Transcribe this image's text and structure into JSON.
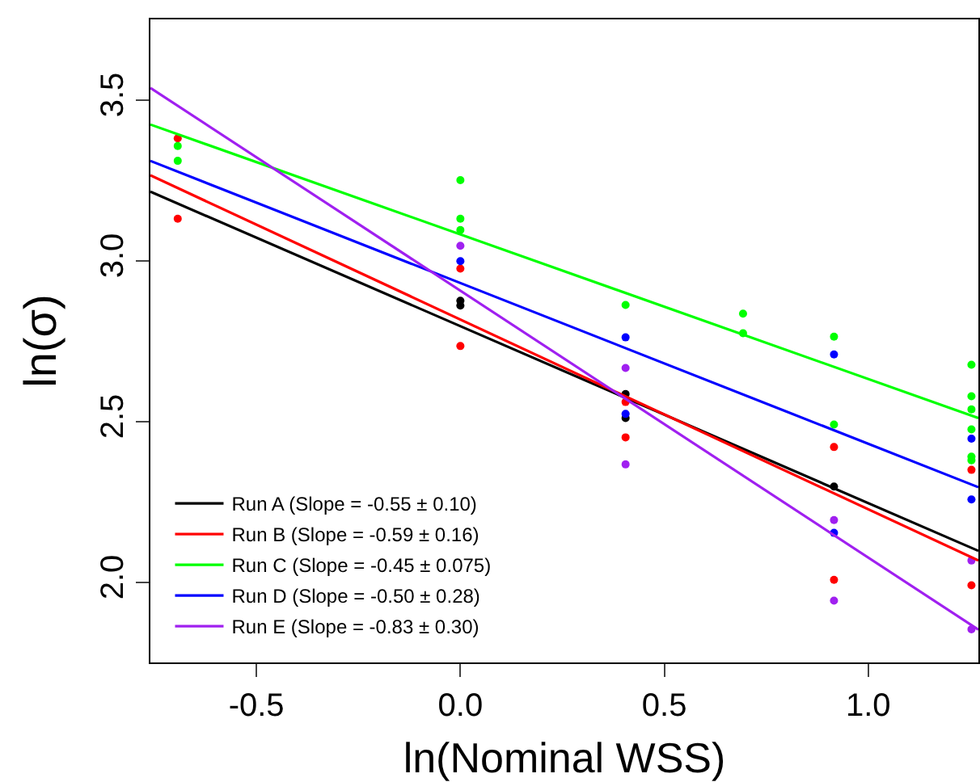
{
  "chart_data": {
    "type": "scatter",
    "xlabel": "ln(Nominal WSS)",
    "ylabel": "ln(σ)",
    "xlim": [
      -0.76,
      1.27
    ],
    "ylim": [
      1.75,
      3.75
    ],
    "xticks": [
      -0.5,
      {
        "value": 0,
        "label": "0.0"
      },
      0.5,
      {
        "value": 1,
        "label": "1.0"
      }
    ],
    "yticks": [
      {
        "value": 2,
        "label": "2.0"
      },
      2.5,
      {
        "value": 3,
        "label": "3.0"
      },
      3.5
    ],
    "legend": "bottom left",
    "series": [
      {
        "marker": "circle",
        "color": "#000000",
        "x": [
          0,
          0,
          0.405,
          0.405,
          0.916
        ],
        "values": [
          2.875,
          2.86,
          2.585,
          2.51,
          2.297
        ]
      },
      {
        "marker": "circle",
        "color": "#ff0000",
        "x": [
          -0.693,
          -0.693,
          0,
          0,
          0.405,
          0.405,
          0.916,
          0.916,
          1.253,
          1.253
        ],
        "values": [
          3.38,
          3.13,
          2.975,
          2.734,
          2.56,
          2.45,
          2.42,
          2.007,
          2.349,
          1.99
        ]
      },
      {
        "marker": "circle",
        "color": "#00ff00",
        "x": [
          -0.693,
          -0.693,
          0,
          0,
          0,
          0.405,
          0.693,
          0.693,
          0.916,
          0.916,
          1.253,
          1.253,
          1.253,
          1.253,
          1.253,
          1.253
        ],
        "values": [
          3.356,
          3.31,
          3.25,
          3.13,
          3.095,
          2.862,
          2.835,
          2.774,
          2.763,
          2.49,
          2.676,
          2.578,
          2.537,
          2.475,
          2.39,
          2.379
        ]
      },
      {
        "marker": "circle",
        "color": "#0000ff",
        "x": [
          0,
          0.405,
          0.405,
          0.916,
          0.916,
          1.253,
          1.253
        ],
        "values": [
          2.998,
          2.761,
          2.523,
          2.708,
          2.153,
          2.446,
          2.257
        ]
      },
      {
        "marker": "circle",
        "color": "#a020f0",
        "x": [
          0,
          0.405,
          0.405,
          0.916,
          0.916,
          1.253,
          1.253
        ],
        "values": [
          3.046,
          2.666,
          2.366,
          2.193,
          1.942,
          2.067,
          1.853
        ]
      },
      {
        "type": "line",
        "marker": "none",
        "name": "Run A (Slope = -0.55 ± 0.10)",
        "color": "#000000",
        "x": [
          -0.76,
          1.27
        ],
        "values": [
          3.214,
          2.097
        ]
      },
      {
        "type": "line",
        "marker": "none",
        "name": "Run B (Slope = -0.59 ± 0.16)",
        "color": "#ff0000",
        "x": [
          -0.76,
          1.27
        ],
        "values": [
          3.265,
          2.067
        ]
      },
      {
        "type": "line",
        "marker": "none",
        "name": "Run C (Slope = -0.45 ± 0.075)",
        "color": "#00ff00",
        "x": [
          -0.76,
          1.27
        ],
        "values": [
          3.423,
          2.51
        ]
      },
      {
        "type": "line",
        "marker": "none",
        "name": "Run D (Slope = -0.50 ± 0.28)",
        "color": "#0000ff",
        "x": [
          -0.76,
          1.27
        ],
        "values": [
          3.31,
          2.295
        ]
      },
      {
        "type": "line",
        "marker": "none",
        "name": "Run E (Slope = -0.83 ± 0.30)",
        "color": "#a020f0",
        "x": [
          -0.76,
          1.27
        ],
        "values": [
          3.537,
          1.852
        ]
      }
    ]
  }
}
